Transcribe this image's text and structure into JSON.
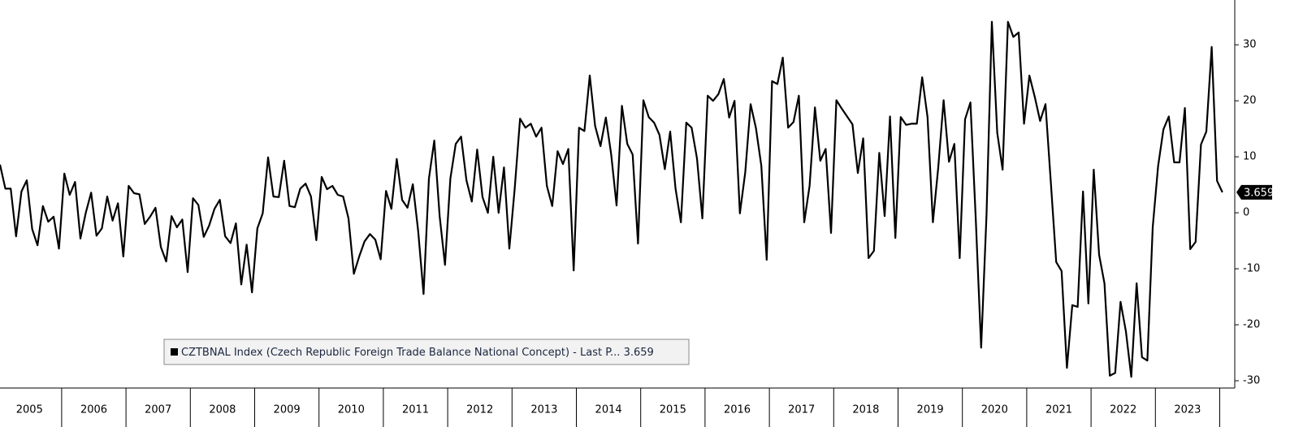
{
  "chart_data": {
    "type": "line",
    "categories": [
      null,
      null,
      null,
      null,
      null,
      null,
      "2005",
      null,
      null,
      null,
      null,
      null,
      null,
      null,
      null,
      null,
      null,
      null,
      "2006",
      null,
      null,
      null,
      null,
      null,
      null,
      null,
      null,
      null,
      null,
      null,
      "2007",
      null,
      null,
      null,
      null,
      null,
      null,
      null,
      null,
      null,
      null,
      null,
      "2008",
      null,
      null,
      null,
      null,
      null,
      null,
      null,
      null,
      null,
      null,
      null,
      "2009",
      null,
      null,
      null,
      null,
      null,
      null,
      null,
      null,
      null,
      null,
      null,
      "2010",
      null,
      null,
      null,
      null,
      null,
      null,
      null,
      null,
      null,
      null,
      null,
      "2011",
      null,
      null,
      null,
      null,
      null,
      null,
      null,
      null,
      null,
      null,
      null,
      "2012",
      null,
      null,
      null,
      null,
      null,
      null,
      null,
      null,
      null,
      null,
      null,
      "2013",
      null,
      null,
      null,
      null,
      null,
      null,
      null,
      null,
      null,
      null,
      null,
      "2014",
      null,
      null,
      null,
      null,
      null,
      null,
      null,
      null,
      null,
      null,
      null,
      "2015",
      null,
      null,
      null,
      null,
      null,
      null,
      null,
      null,
      null,
      null,
      null,
      "2016",
      null,
      null,
      null,
      null,
      null,
      null,
      null,
      null,
      null,
      null,
      null,
      "2017",
      null,
      null,
      null,
      null,
      null,
      null,
      null,
      null,
      null,
      null,
      null,
      "2018",
      null,
      null,
      null,
      null,
      null,
      null,
      null,
      null,
      null,
      null,
      null,
      "2019",
      null,
      null,
      null,
      null,
      null,
      null,
      null,
      null,
      null,
      null,
      null,
      "2020",
      null,
      null,
      null,
      null,
      null,
      null,
      null,
      null,
      null,
      null,
      null,
      "2021",
      null,
      null,
      null,
      null,
      null,
      null,
      null,
      null,
      null,
      null,
      null,
      "2022",
      null,
      null,
      null,
      null,
      null,
      null,
      null,
      null,
      null,
      null,
      null,
      "2023",
      null,
      null,
      null,
      null,
      null,
      null
    ],
    "series": [
      {
        "name": "CZTBNAL Index (Czech Republic Foreign Trade Balance National Concept) - Last P...",
        "color": "#000000",
        "values": [
          8.6,
          4.3,
          4.3,
          -4.2,
          3.8,
          5.8,
          -2.9,
          -5.8,
          1.2,
          -1.6,
          -0.7,
          -6.4,
          7.0,
          3.2,
          5.5,
          -4.6,
          0,
          3.6,
          -4.1,
          -2.8,
          2.9,
          -1.4,
          1.7,
          -7.8,
          4.8,
          3.5,
          3.3,
          -2.0,
          -0.7,
          0.9,
          -6.1,
          -8.7,
          -0.6,
          -2.6,
          -1.2,
          -10.6,
          2.6,
          1.4,
          -4.3,
          -2.3,
          0.7,
          2.3,
          -4.2,
          -5.4,
          -1.9,
          -12.8,
          -5.7,
          -14.2,
          -2.8,
          -0.1,
          9.9,
          2.9,
          2.8,
          9.3,
          1.2,
          1.0,
          4.3,
          5.2,
          2.9,
          -4.9,
          6.4,
          4.2,
          4.8,
          3.2,
          2.9,
          -1.0,
          -10.9,
          -7.8,
          -5.1,
          -3.8,
          -4.8,
          -8.3,
          3.9,
          0.7,
          9.6,
          2.3,
          0.9,
          5.1,
          -3.3,
          -14.5,
          6.1,
          12.9,
          -0.6,
          -9.3,
          6.1,
          12.3,
          13.6,
          5.8,
          2.0,
          11.3,
          2.8,
          0,
          10.0,
          0,
          8.1,
          -6.4,
          4.3,
          16.8,
          15.2,
          15.9,
          13.6,
          15.2,
          4.8,
          1.2,
          11.0,
          8.7,
          11.4,
          -10.3,
          15.2,
          14.6,
          24.5,
          15.5,
          11.9,
          17.0,
          10.4,
          1.3,
          19.1,
          12.3,
          10.4,
          -5.5,
          20.1,
          17.1,
          16.1,
          13.9,
          7.8,
          14.5,
          4.3,
          -1.7,
          16.1,
          15.2,
          9.7,
          -1.0,
          20.9,
          20.0,
          21.2,
          23.9,
          17.0,
          20.0,
          -0.1,
          7.2,
          19.4,
          15.1,
          8.4,
          -8.4,
          23.5,
          23.0,
          27.7,
          15.2,
          16.2,
          20.9,
          -1.7,
          4.8,
          18.8,
          9.3,
          11.4,
          -3.6,
          20.1,
          18.6,
          17.2,
          15.8,
          7.1,
          13.3,
          -8.1,
          -6.8,
          10.7,
          -0.6,
          17.2,
          -4.5,
          17.1,
          15.7,
          15.9,
          15.9,
          24.2,
          17.1,
          -1.7,
          8.1,
          20.1,
          9.1,
          12.3,
          -8.1,
          16.7,
          19.7,
          -1.2,
          -24.1,
          -0.4,
          34.1,
          14.3,
          7.7,
          34.1,
          31.4,
          32.2,
          15.9,
          24.5,
          20.7,
          16.4,
          19.4,
          5.4,
          -8.8,
          -10.4,
          -27.7,
          -16.5,
          -16.8,
          3.8,
          -16.2,
          7.7,
          -7.5,
          -12.6,
          -29.1,
          -28.6,
          -15.9,
          -21.2,
          -29.3,
          -12.6,
          -25.8,
          -26.4,
          -2.6,
          8.3,
          14.9,
          17.2,
          9.0,
          9.0,
          18.7,
          -6.5,
          -5.2,
          12.2,
          14.5,
          29.6,
          5.7,
          3.659
        ]
      }
    ],
    "ylim": [
      -31.3,
      38
    ],
    "yticks": [
      -30,
      -20,
      -10,
      0,
      10,
      20,
      30
    ],
    "grid": false
  }
}
